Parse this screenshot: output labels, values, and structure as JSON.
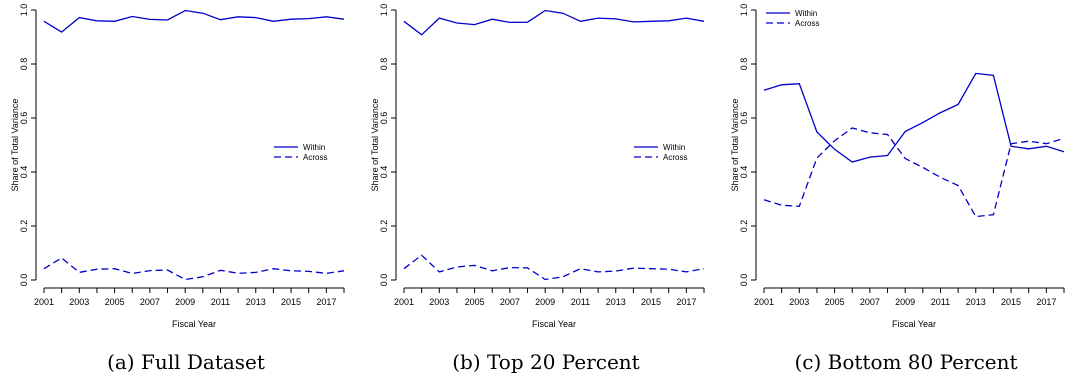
{
  "chart_data": [
    {
      "type": "line",
      "caption": "(a) Full Dataset",
      "xlabel": "Fiscal Year",
      "ylabel": "Share of Total Variance",
      "xlim": [
        2001,
        2018
      ],
      "ylim": [
        0,
        1.0
      ],
      "xticks": [
        "2001",
        "2003",
        "2005",
        "2007",
        "2009",
        "2011",
        "2013",
        "2015",
        "2017"
      ],
      "yticks": [
        "0.0",
        "0.2",
        "0.4",
        "0.6",
        "0.8",
        "1.0"
      ],
      "legend_position": "right",
      "x": [
        2001,
        2002,
        2003,
        2004,
        2005,
        2006,
        2007,
        2008,
        2009,
        2010,
        2011,
        2012,
        2013,
        2014,
        2015,
        2016,
        2017,
        2018
      ],
      "series": [
        {
          "name": "Within",
          "style": "solid",
          "color": "#0000cc",
          "values": [
            0.958,
            0.918,
            0.972,
            0.96,
            0.958,
            0.976,
            0.965,
            0.963,
            0.998,
            0.988,
            0.964,
            0.975,
            0.972,
            0.958,
            0.966,
            0.968,
            0.975,
            0.966
          ]
        },
        {
          "name": "Across",
          "style": "dashed",
          "color": "#0000cc",
          "values": [
            0.042,
            0.082,
            0.028,
            0.04,
            0.042,
            0.024,
            0.035,
            0.037,
            0.002,
            0.012,
            0.036,
            0.025,
            0.028,
            0.042,
            0.034,
            0.032,
            0.025,
            0.034
          ]
        }
      ]
    },
    {
      "type": "line",
      "caption": "(b) Top 20 Percent",
      "xlabel": "Fiscal Year",
      "ylabel": "Share of Total Variance",
      "xlim": [
        2001,
        2018
      ],
      "ylim": [
        0,
        1.0
      ],
      "xticks": [
        "2001",
        "2003",
        "2005",
        "2007",
        "2009",
        "2011",
        "2013",
        "2015",
        "2017"
      ],
      "yticks": [
        "0.0",
        "0.2",
        "0.4",
        "0.6",
        "0.8",
        "1.0"
      ],
      "legend_position": "right",
      "x": [
        2001,
        2002,
        2003,
        2004,
        2005,
        2006,
        2007,
        2008,
        2009,
        2010,
        2011,
        2012,
        2013,
        2014,
        2015,
        2016,
        2017,
        2018
      ],
      "series": [
        {
          "name": "Within",
          "style": "solid",
          "color": "#0000cc",
          "values": [
            0.958,
            0.908,
            0.97,
            0.952,
            0.946,
            0.966,
            0.954,
            0.955,
            0.998,
            0.988,
            0.958,
            0.97,
            0.967,
            0.956,
            0.958,
            0.96,
            0.97,
            0.958
          ]
        },
        {
          "name": "Across",
          "style": "dashed",
          "color": "#0000cc",
          "values": [
            0.042,
            0.092,
            0.03,
            0.048,
            0.054,
            0.034,
            0.046,
            0.045,
            0.002,
            0.012,
            0.042,
            0.03,
            0.033,
            0.044,
            0.042,
            0.04,
            0.03,
            0.042
          ]
        }
      ]
    },
    {
      "type": "line",
      "caption": "(c) Bottom 80 Percent",
      "xlabel": "Fiscal Year",
      "ylabel": "Share of Total Variance",
      "xlim": [
        2001,
        2018
      ],
      "ylim": [
        0,
        1.0
      ],
      "xticks": [
        "2001",
        "2003",
        "2005",
        "2007",
        "2009",
        "2011",
        "2013",
        "2015",
        "2017"
      ],
      "yticks": [
        "0.0",
        "0.2",
        "0.4",
        "0.6",
        "0.8",
        "1.0"
      ],
      "legend_position": "top-left",
      "x": [
        2001,
        2002,
        2003,
        2004,
        2005,
        2006,
        2007,
        2008,
        2009,
        2010,
        2011,
        2012,
        2013,
        2014,
        2015,
        2016,
        2017,
        2018
      ],
      "series": [
        {
          "name": "Within",
          "style": "solid",
          "color": "#0000cc",
          "values": [
            0.703,
            0.723,
            0.727,
            0.548,
            0.484,
            0.437,
            0.455,
            0.461,
            0.55,
            0.583,
            0.62,
            0.65,
            0.765,
            0.758,
            0.495,
            0.486,
            0.495,
            0.475
          ]
        },
        {
          "name": "Across",
          "style": "dashed",
          "color": "#0000cc",
          "values": [
            0.297,
            0.277,
            0.273,
            0.452,
            0.516,
            0.563,
            0.545,
            0.539,
            0.45,
            0.417,
            0.38,
            0.35,
            0.235,
            0.242,
            0.505,
            0.514,
            0.505,
            0.525
          ]
        }
      ]
    }
  ]
}
